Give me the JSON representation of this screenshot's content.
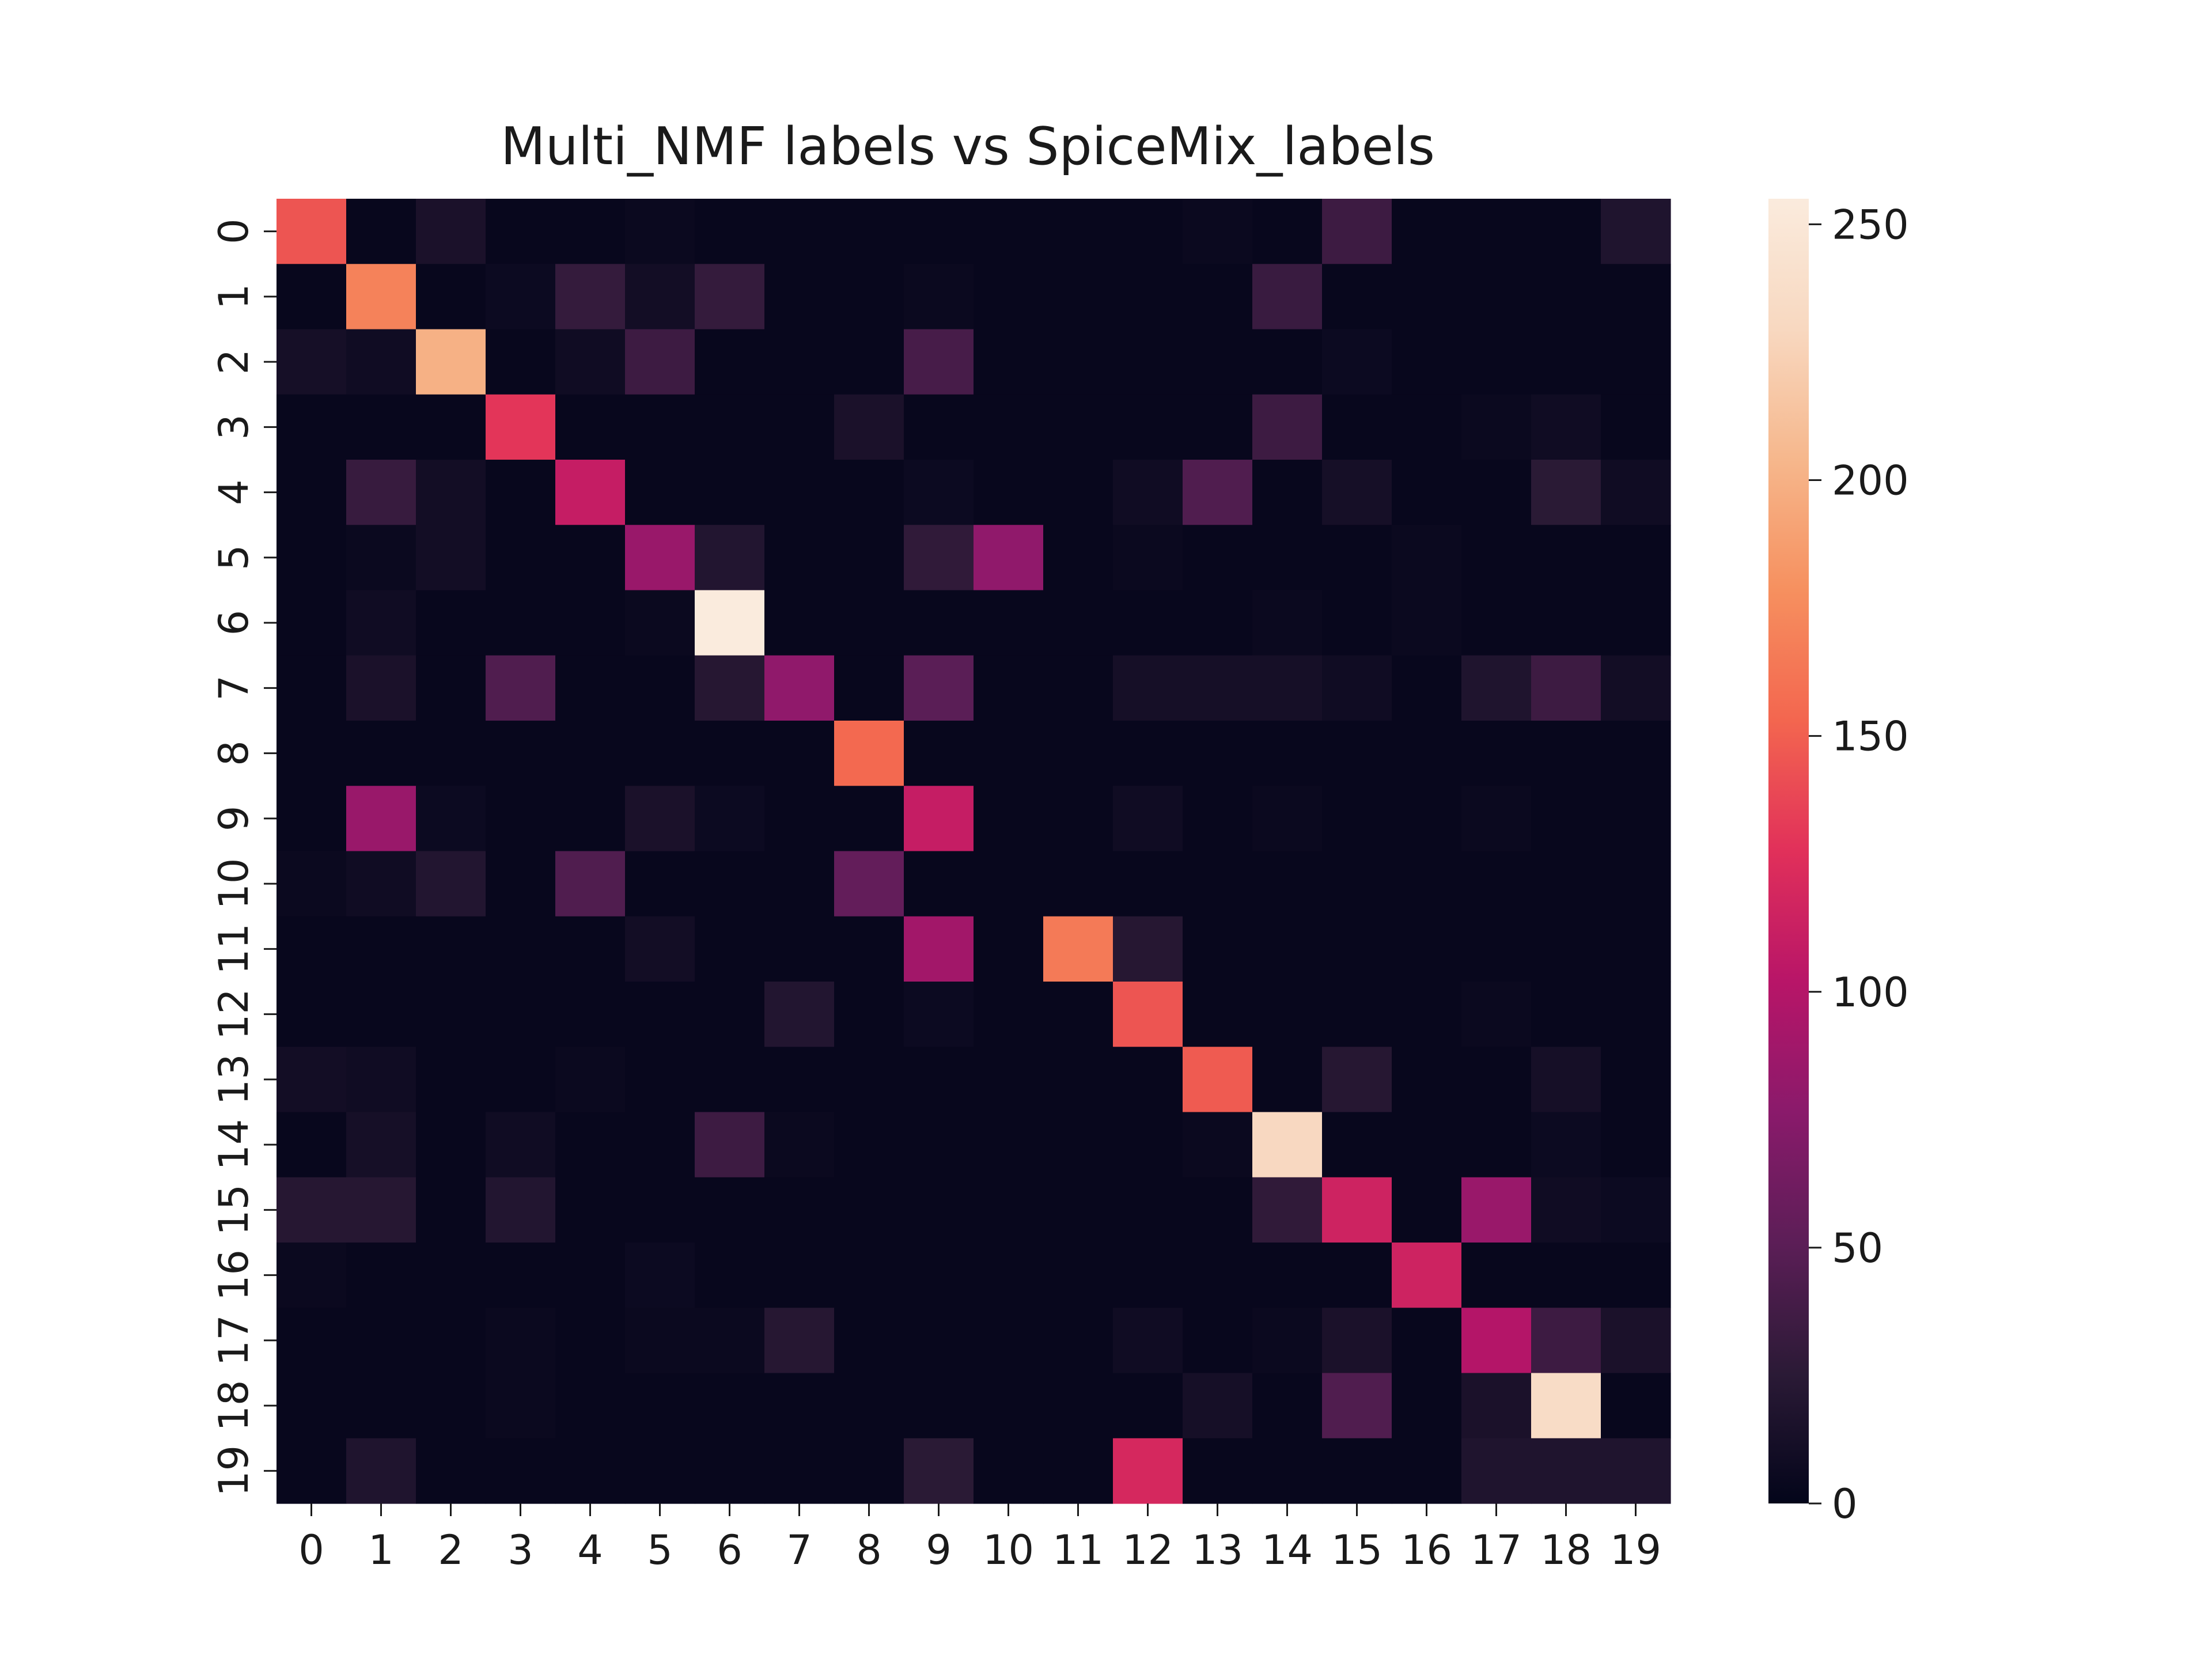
{
  "chart_data": {
    "type": "heatmap",
    "title": "Multi_NMF labels vs SpiceMix_labels",
    "xlabel": "",
    "ylabel": "",
    "x_categories": [
      "0",
      "1",
      "2",
      "3",
      "4",
      "5",
      "6",
      "7",
      "8",
      "9",
      "10",
      "11",
      "12",
      "13",
      "14",
      "15",
      "16",
      "17",
      "18",
      "19"
    ],
    "y_categories": [
      "0",
      "1",
      "2",
      "3",
      "4",
      "5",
      "6",
      "7",
      "8",
      "9",
      "10",
      "11",
      "12",
      "13",
      "14",
      "15",
      "16",
      "17",
      "18",
      "19"
    ],
    "values": [
      [
        145,
        3,
        15,
        3,
        3,
        5,
        3,
        3,
        3,
        3,
        3,
        3,
        3,
        5,
        3,
        35,
        3,
        3,
        3,
        18
      ],
      [
        3,
        170,
        3,
        6,
        30,
        10,
        30,
        3,
        3,
        5,
        3,
        3,
        3,
        3,
        33,
        3,
        3,
        3,
        3,
        3
      ],
      [
        12,
        8,
        200,
        3,
        8,
        35,
        3,
        3,
        3,
        40,
        3,
        3,
        3,
        3,
        3,
        6,
        3,
        3,
        3,
        3
      ],
      [
        3,
        3,
        3,
        130,
        3,
        3,
        3,
        3,
        15,
        3,
        3,
        3,
        3,
        3,
        35,
        3,
        3,
        5,
        8,
        3
      ],
      [
        3,
        32,
        10,
        3,
        110,
        3,
        3,
        3,
        3,
        6,
        3,
        3,
        8,
        45,
        3,
        12,
        3,
        3,
        25,
        8
      ],
      [
        3,
        5,
        10,
        3,
        3,
        85,
        20,
        3,
        3,
        28,
        80,
        3,
        5,
        3,
        3,
        3,
        5,
        3,
        3,
        3
      ],
      [
        3,
        8,
        3,
        3,
        3,
        5,
        255,
        3,
        3,
        3,
        3,
        3,
        3,
        3,
        5,
        3,
        5,
        3,
        3,
        3
      ],
      [
        3,
        15,
        3,
        45,
        3,
        3,
        22,
        80,
        3,
        50,
        3,
        3,
        12,
        12,
        12,
        8,
        3,
        18,
        35,
        10
      ],
      [
        3,
        3,
        3,
        3,
        3,
        3,
        3,
        3,
        155,
        3,
        3,
        3,
        3,
        3,
        3,
        3,
        3,
        3,
        3,
        3
      ],
      [
        3,
        85,
        6,
        3,
        3,
        15,
        6,
        3,
        3,
        110,
        3,
        3,
        8,
        3,
        5,
        3,
        3,
        5,
        3,
        3
      ],
      [
        5,
        8,
        20,
        3,
        45,
        3,
        3,
        3,
        55,
        3,
        3,
        3,
        3,
        3,
        3,
        3,
        3,
        3,
        3,
        3
      ],
      [
        3,
        3,
        3,
        3,
        3,
        10,
        3,
        3,
        3,
        90,
        3,
        165,
        22,
        3,
        3,
        3,
        3,
        3,
        3,
        3
      ],
      [
        3,
        3,
        3,
        3,
        3,
        3,
        3,
        20,
        3,
        6,
        3,
        3,
        145,
        3,
        3,
        3,
        3,
        5,
        3,
        3
      ],
      [
        10,
        8,
        3,
        3,
        5,
        3,
        3,
        3,
        3,
        3,
        3,
        3,
        3,
        148,
        3,
        22,
        3,
        3,
        12,
        3
      ],
      [
        3,
        12,
        3,
        8,
        3,
        3,
        35,
        5,
        3,
        3,
        3,
        3,
        3,
        5,
        230,
        3,
        3,
        3,
        6,
        3
      ],
      [
        22,
        22,
        3,
        20,
        3,
        3,
        3,
        3,
        3,
        3,
        3,
        3,
        3,
        3,
        28,
        115,
        3,
        85,
        8,
        6
      ],
      [
        5,
        3,
        3,
        3,
        3,
        6,
        3,
        3,
        3,
        3,
        3,
        3,
        3,
        3,
        3,
        3,
        115,
        3,
        3,
        3
      ],
      [
        3,
        3,
        3,
        5,
        3,
        5,
        5,
        22,
        3,
        3,
        3,
        3,
        8,
        3,
        5,
        15,
        3,
        100,
        35,
        15
      ],
      [
        3,
        3,
        3,
        5,
        3,
        3,
        3,
        3,
        3,
        3,
        3,
        3,
        3,
        12,
        3,
        45,
        3,
        15,
        235,
        3
      ],
      [
        3,
        18,
        3,
        3,
        3,
        3,
        3,
        3,
        3,
        25,
        3,
        3,
        120,
        3,
        3,
        3,
        3,
        18,
        18,
        18
      ]
    ],
    "colorbar": {
      "min": 0,
      "max": 255,
      "ticks": [
        0,
        50,
        100,
        150,
        200,
        250
      ],
      "colormap": "rocket",
      "stops": [
        "#03051a",
        "#2b1a36",
        "#5c1e57",
        "#8a1a6b",
        "#b81568",
        "#e1305a",
        "#f3664f",
        "#f6905f",
        "#f6b78c",
        "#f8d8c0",
        "#faebdd"
      ]
    },
    "grid": false
  }
}
